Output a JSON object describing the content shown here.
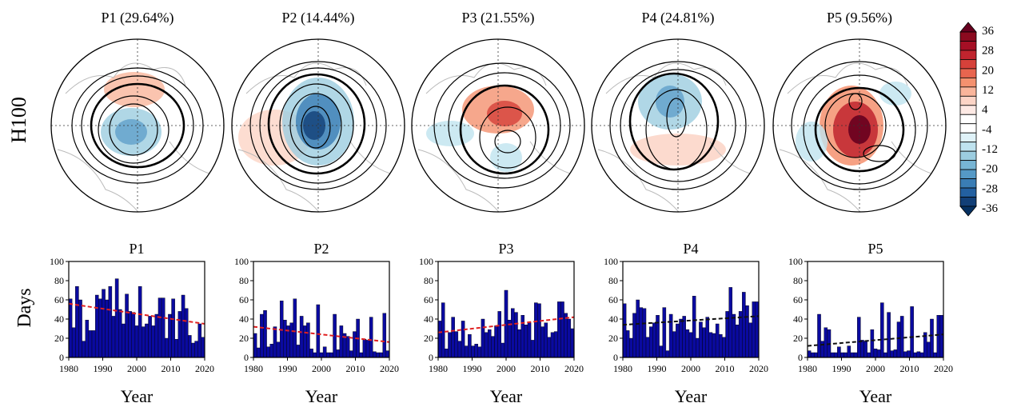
{
  "row_labels": {
    "maps": "H100",
    "bars": "Days"
  },
  "map_titles": [
    "P1  (29.64%)",
    "P2  (14.44%)",
    "P3  (21.55%)",
    "P4  (24.81%)",
    "P5  (9.56%)"
  ],
  "colorbar": {
    "labels": [
      "36",
      "28",
      "20",
      "12",
      "4",
      "-4",
      "-12",
      "-20",
      "-28",
      "-36"
    ],
    "colors": [
      "#67001f",
      "#8b0a1f",
      "#a50f25",
      "#c0242e",
      "#d6413a",
      "#e8654f",
      "#f4916f",
      "#f9b59b",
      "#fcd4c6",
      "#fde9e4",
      "#ffffff",
      "#ffffff",
      "#dff2f8",
      "#bfe3ef",
      "#9ccde0",
      "#77b5d4",
      "#5599c6",
      "#3a7db5",
      "#2360a0",
      "#123f77",
      "#053061"
    ]
  },
  "chart_data": [
    {
      "type": "bar",
      "title": "P1",
      "xlabel": "Year",
      "ylabel": "Days",
      "xlim": [
        1980,
        2020
      ],
      "ylim": [
        0,
        100
      ],
      "xticks": [
        "1980",
        "1990",
        "2000",
        "2010",
        "2020"
      ],
      "yticks": [
        "0",
        "20",
        "40",
        "60",
        "80",
        "100"
      ],
      "bar_color": "#0a0aa0",
      "trend_color": "#e02020",
      "trend": [
        56,
        35
      ],
      "values": [
        61,
        31,
        74,
        60,
        17,
        39,
        28,
        28,
        65,
        61,
        71,
        60,
        74,
        43,
        82,
        50,
        35,
        66,
        48,
        47,
        33,
        74,
        32,
        35,
        43,
        33,
        45,
        62,
        62,
        20,
        45,
        61,
        19,
        48,
        65,
        51,
        23,
        15,
        17,
        35,
        21
      ]
    },
    {
      "type": "bar",
      "title": "P2",
      "xlabel": "Year",
      "ylabel": "Days",
      "xlim": [
        1980,
        2020
      ],
      "ylim": [
        0,
        100
      ],
      "xticks": [
        "1980",
        "1990",
        "2000",
        "2010",
        "2020"
      ],
      "yticks": [
        "0",
        "20",
        "40",
        "60",
        "80",
        "100"
      ],
      "bar_color": "#0a0aa0",
      "trend_color": "#e02020",
      "trend": [
        32,
        16
      ],
      "values": [
        25,
        10,
        45,
        49,
        11,
        14,
        32,
        16,
        59,
        39,
        33,
        36,
        61,
        13,
        43,
        33,
        36,
        9,
        5,
        55,
        5,
        11,
        5,
        5,
        45,
        8,
        33,
        25,
        22,
        7,
        27,
        40,
        5,
        19,
        18,
        42,
        6,
        5,
        5,
        46,
        7
      ]
    },
    {
      "type": "bar",
      "title": "P3",
      "xlabel": "Year",
      "ylabel": "Days",
      "xlim": [
        1980,
        2020
      ],
      "ylim": [
        0,
        100
      ],
      "xticks": [
        "1980",
        "1990",
        "2000",
        "2010",
        "2020"
      ],
      "yticks": [
        "0",
        "20",
        "40",
        "60",
        "80",
        "100"
      ],
      "bar_color": "#0a0aa0",
      "trend_color": "#e02020",
      "trend": [
        26,
        42
      ],
      "values": [
        38,
        57,
        9,
        26,
        42,
        27,
        17,
        38,
        12,
        24,
        12,
        14,
        11,
        40,
        26,
        29,
        22,
        33,
        48,
        15,
        70,
        39,
        51,
        47,
        29,
        44,
        34,
        36,
        18,
        57,
        56,
        32,
        36,
        21,
        26,
        27,
        58,
        58,
        46,
        40,
        30
      ]
    },
    {
      "type": "bar",
      "title": "P4",
      "xlabel": "Year",
      "ylabel": "Days",
      "xlim": [
        1980,
        2020
      ],
      "ylim": [
        0,
        100
      ],
      "xticks": [
        "1980",
        "1990",
        "2000",
        "2010",
        "2020"
      ],
      "yticks": [
        "0",
        "20",
        "40",
        "60",
        "80",
        "100"
      ],
      "bar_color": "#0a0aa0",
      "trend_color": "#111111",
      "trend": [
        34,
        43
      ],
      "values": [
        56,
        28,
        20,
        46,
        60,
        52,
        51,
        21,
        32,
        36,
        44,
        12,
        52,
        7,
        45,
        27,
        35,
        40,
        43,
        29,
        26,
        64,
        20,
        37,
        31,
        42,
        26,
        25,
        35,
        24,
        21,
        48,
        73,
        45,
        34,
        48,
        68,
        54,
        36,
        58,
        58
      ]
    },
    {
      "type": "bar",
      "title": "P5",
      "xlabel": "Year",
      "ylabel": "Days",
      "xlim": [
        1980,
        2020
      ],
      "ylim": [
        0,
        100
      ],
      "xticks": [
        "1980",
        "1990",
        "2000",
        "2010",
        "2020"
      ],
      "yticks": [
        "0",
        "20",
        "40",
        "60",
        "80",
        "100"
      ],
      "bar_color": "#0a0aa0",
      "trend_color": "#111111",
      "trend": [
        12,
        24
      ],
      "values": [
        7,
        5,
        5,
        45,
        17,
        31,
        29,
        5,
        5,
        11,
        5,
        5,
        12,
        5,
        5,
        42,
        18,
        17,
        5,
        29,
        9,
        8,
        57,
        5,
        47,
        7,
        8,
        37,
        43,
        6,
        7,
        53,
        5,
        6,
        5,
        26,
        16,
        40,
        5,
        44,
        44
      ]
    }
  ]
}
